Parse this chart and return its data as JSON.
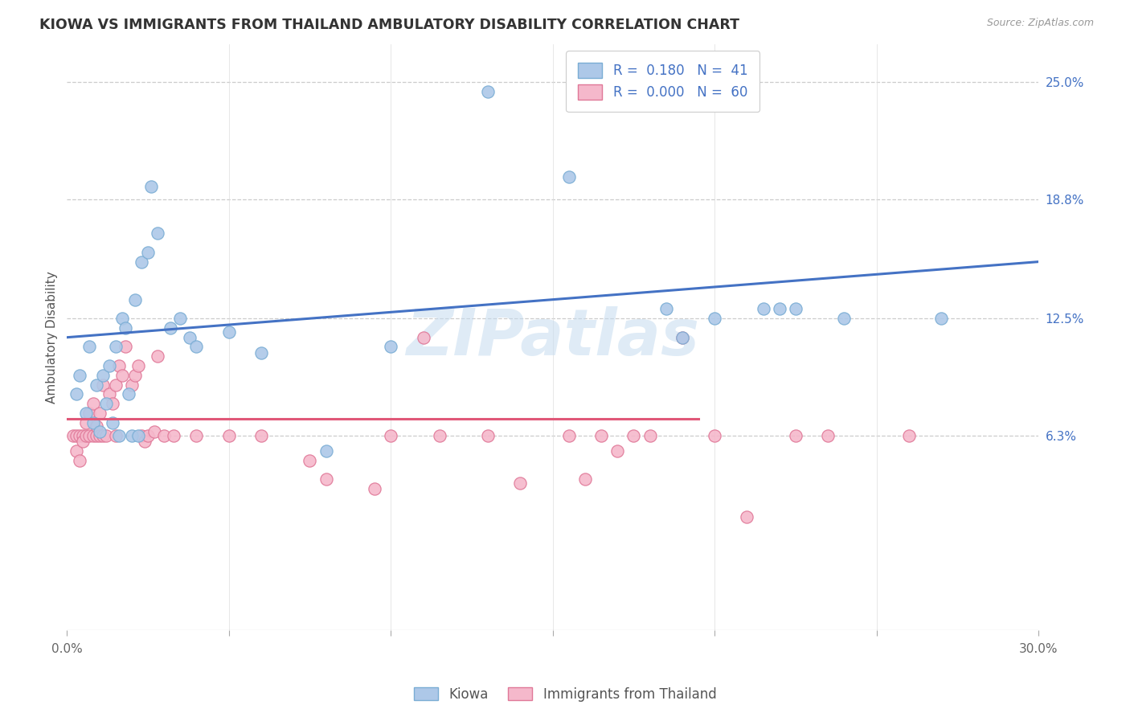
{
  "title": "KIOWA VS IMMIGRANTS FROM THAILAND AMBULATORY DISABILITY CORRELATION CHART",
  "source": "Source: ZipAtlas.com",
  "ylabel": "Ambulatory Disability",
  "xlim": [
    0.0,
    0.3
  ],
  "ylim": [
    -0.04,
    0.27
  ],
  "x_ticks": [
    0.0,
    0.05,
    0.1,
    0.15,
    0.2,
    0.25,
    0.3
  ],
  "x_tick_labels": [
    "0.0%",
    "",
    "",
    "",
    "",
    "",
    "30.0%"
  ],
  "y_tick_right": [
    0.063,
    0.125,
    0.188,
    0.25
  ],
  "y_tick_right_labels": [
    "6.3%",
    "12.5%",
    "18.8%",
    "25.0%"
  ],
  "hline_y_values": [
    0.063,
    0.125,
    0.188,
    0.25
  ],
  "kiowa_R": "0.180",
  "kiowa_N": "41",
  "thailand_R": "0.000",
  "thailand_N": "60",
  "kiowa_color": "#adc8e8",
  "kiowa_edge": "#7aadd4",
  "thailand_color": "#f5b8cb",
  "thailand_edge": "#e07898",
  "trend_kiowa_color": "#4472c4",
  "trend_thailand_color": "#e05878",
  "legend_label_kiowa": "Kiowa",
  "legend_label_thailand": "Immigrants from Thailand",
  "watermark": "ZIPatlas",
  "kiowa_trend_x0": 0.0,
  "kiowa_trend_y0": 0.115,
  "kiowa_trend_x1": 0.3,
  "kiowa_trend_y1": 0.155,
  "thailand_trend_y": 0.072,
  "thailand_trend_x0": 0.0,
  "thailand_trend_x1": 0.195,
  "kiowa_x": [
    0.003,
    0.004,
    0.006,
    0.007,
    0.008,
    0.009,
    0.01,
    0.011,
    0.012,
    0.013,
    0.014,
    0.015,
    0.016,
    0.017,
    0.018,
    0.019,
    0.02,
    0.021,
    0.022,
    0.023,
    0.025,
    0.026,
    0.028,
    0.032,
    0.035,
    0.038,
    0.04,
    0.05,
    0.06,
    0.08,
    0.1,
    0.13,
    0.155,
    0.185,
    0.19,
    0.2,
    0.215,
    0.22,
    0.225,
    0.24,
    0.27
  ],
  "kiowa_y": [
    0.085,
    0.095,
    0.075,
    0.11,
    0.07,
    0.09,
    0.065,
    0.095,
    0.08,
    0.1,
    0.07,
    0.11,
    0.063,
    0.125,
    0.12,
    0.085,
    0.063,
    0.135,
    0.063,
    0.155,
    0.16,
    0.195,
    0.17,
    0.12,
    0.125,
    0.115,
    0.11,
    0.118,
    0.107,
    0.055,
    0.11,
    0.245,
    0.2,
    0.13,
    0.115,
    0.125,
    0.13,
    0.13,
    0.13,
    0.125,
    0.125
  ],
  "thailand_x": [
    0.002,
    0.003,
    0.003,
    0.004,
    0.004,
    0.005,
    0.005,
    0.006,
    0.006,
    0.007,
    0.007,
    0.008,
    0.008,
    0.009,
    0.009,
    0.01,
    0.01,
    0.011,
    0.011,
    0.012,
    0.013,
    0.014,
    0.015,
    0.015,
    0.016,
    0.017,
    0.018,
    0.02,
    0.021,
    0.022,
    0.023,
    0.024,
    0.025,
    0.027,
    0.028,
    0.03,
    0.033,
    0.04,
    0.05,
    0.06,
    0.075,
    0.08,
    0.095,
    0.1,
    0.11,
    0.115,
    0.13,
    0.14,
    0.155,
    0.16,
    0.165,
    0.17,
    0.175,
    0.18,
    0.19,
    0.2,
    0.21,
    0.225,
    0.235,
    0.26
  ],
  "thailand_y": [
    0.063,
    0.063,
    0.055,
    0.063,
    0.05,
    0.063,
    0.06,
    0.063,
    0.07,
    0.063,
    0.075,
    0.063,
    0.08,
    0.063,
    0.068,
    0.063,
    0.075,
    0.063,
    0.09,
    0.063,
    0.085,
    0.08,
    0.063,
    0.09,
    0.1,
    0.095,
    0.11,
    0.09,
    0.095,
    0.1,
    0.063,
    0.06,
    0.063,
    0.065,
    0.105,
    0.063,
    0.063,
    0.063,
    0.063,
    0.063,
    0.05,
    0.04,
    0.035,
    0.063,
    0.115,
    0.063,
    0.063,
    0.038,
    0.063,
    0.04,
    0.063,
    0.055,
    0.063,
    0.063,
    0.115,
    0.063,
    0.02,
    0.063,
    0.063,
    0.063
  ]
}
